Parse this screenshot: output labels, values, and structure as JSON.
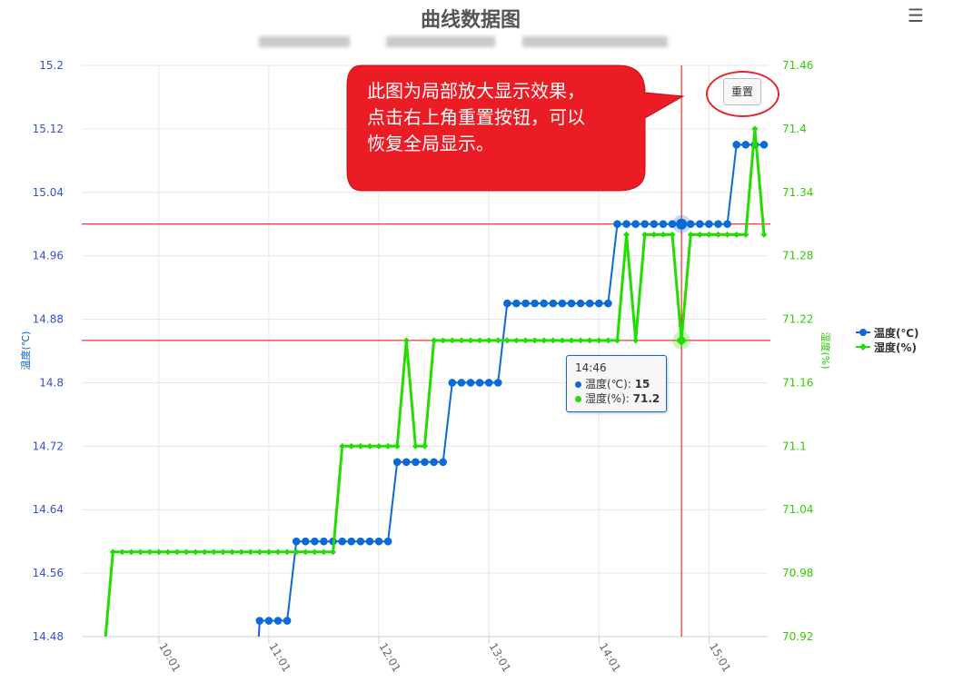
{
  "chart_data": {
    "type": "line",
    "title": "曲线数据图",
    "x": [
      "09:31",
      "09:36",
      "09:41",
      "09:46",
      "09:51",
      "09:56",
      "10:01",
      "10:06",
      "10:11",
      "10:16",
      "10:21",
      "10:26",
      "10:31",
      "10:36",
      "10:41",
      "10:46",
      "10:51",
      "10:56",
      "11:01",
      "11:06",
      "11:11",
      "11:16",
      "11:21",
      "11:26",
      "11:31",
      "11:36",
      "11:41",
      "11:46",
      "11:51",
      "11:56",
      "12:01",
      "12:06",
      "12:11",
      "12:16",
      "12:21",
      "12:26",
      "12:31",
      "12:36",
      "12:41",
      "12:46",
      "12:51",
      "12:56",
      "13:01",
      "13:06",
      "13:11",
      "13:16",
      "13:21",
      "13:26",
      "13:31",
      "13:36",
      "13:41",
      "13:46",
      "13:51",
      "13:56",
      "14:01",
      "14:06",
      "14:11",
      "14:16",
      "14:21",
      "14:26",
      "14:31",
      "14:36",
      "14:41",
      "14:46",
      "14:51",
      "14:56",
      "15:01",
      "15:06",
      "15:11",
      "15:16",
      "15:21",
      "15:26",
      "15:31"
    ],
    "xlim": [
      "09:19",
      "15:33"
    ],
    "x_ticks": [
      "10:01",
      "11:01",
      "12:01",
      "13:01",
      "14:01",
      "15:01"
    ],
    "series": [
      {
        "name": "温度(℃)",
        "axis": "left",
        "color": "#0a6ad8",
        "marker": "circle",
        "values": [
          null,
          null,
          null,
          null,
          null,
          null,
          null,
          null,
          null,
          null,
          null,
          null,
          null,
          null,
          null,
          null,
          14.3,
          14.5,
          14.5,
          14.5,
          14.5,
          14.6,
          14.6,
          14.6,
          14.6,
          14.6,
          14.6,
          14.6,
          14.6,
          14.6,
          14.6,
          14.6,
          14.7,
          14.7,
          14.7,
          14.7,
          14.7,
          14.7,
          14.8,
          14.8,
          14.8,
          14.8,
          14.8,
          14.8,
          14.9,
          14.9,
          14.9,
          14.9,
          14.9,
          14.9,
          14.9,
          14.9,
          14.9,
          14.9,
          14.9,
          14.9,
          15.0,
          15.0,
          15.0,
          15.0,
          15.0,
          15.0,
          15.0,
          15.0,
          15.0,
          15.0,
          15.0,
          15.0,
          15.0,
          15.1,
          15.1,
          15.1,
          15.1
        ]
      },
      {
        "name": "湿度(%)",
        "axis": "right",
        "color": "#22dd00",
        "marker": "diamond",
        "values": [
          70.9,
          71.0,
          71.0,
          71.0,
          71.0,
          71.0,
          71.0,
          71.0,
          71.0,
          71.0,
          71.0,
          71.0,
          71.0,
          71.0,
          71.0,
          71.0,
          71.0,
          71.0,
          71.0,
          71.0,
          71.0,
          71.0,
          71.0,
          71.0,
          71.0,
          71.0,
          71.1,
          71.1,
          71.1,
          71.1,
          71.1,
          71.1,
          71.1,
          71.2,
          71.1,
          71.1,
          71.2,
          71.2,
          71.2,
          71.2,
          71.2,
          71.2,
          71.2,
          71.2,
          71.2,
          71.2,
          71.2,
          71.2,
          71.2,
          71.2,
          71.2,
          71.2,
          71.2,
          71.2,
          71.2,
          71.2,
          71.2,
          71.3,
          71.2,
          71.3,
          71.3,
          71.3,
          71.3,
          71.2,
          71.3,
          71.3,
          71.3,
          71.3,
          71.3,
          71.3,
          71.3,
          71.4,
          71.3
        ]
      }
    ],
    "y_left": {
      "label": "温度(℃)",
      "lim": [
        14.48,
        15.2
      ],
      "ticks": [
        "14.48",
        "14.56",
        "14.64",
        "14.72",
        "14.8",
        "14.88",
        "14.96",
        "15.04",
        "15.12",
        "15.2"
      ],
      "color": "#3a50c8"
    },
    "y_right": {
      "label": "湿度(%)",
      "lim": [
        70.92,
        71.46
      ],
      "ticks": [
        "70.92",
        "70.98",
        "71.04",
        "71.1",
        "71.16",
        "71.22",
        "71.28",
        "71.34",
        "71.4",
        "71.46"
      ],
      "color": "#33cc00"
    },
    "grid": true,
    "legend": "right",
    "crosshair": {
      "x": "14:46",
      "y_left": 15.0,
      "y_right": 71.2,
      "color": "#ff0000"
    },
    "highlight_index": 63
  },
  "tooltip": {
    "time": "14:46",
    "rows": [
      {
        "label": "温度(℃): ",
        "value": "15"
      },
      {
        "label": "湿度(%): ",
        "value": "71.2"
      }
    ]
  },
  "callout": {
    "text": "此图为局部放大显示效果，\n点击右上角重置按钮，可以\n恢复全局显示。",
    "color": "#ec1c24"
  },
  "reset_button": {
    "label": "重置"
  },
  "menu": {
    "icon": "hamburger-menu-icon"
  }
}
